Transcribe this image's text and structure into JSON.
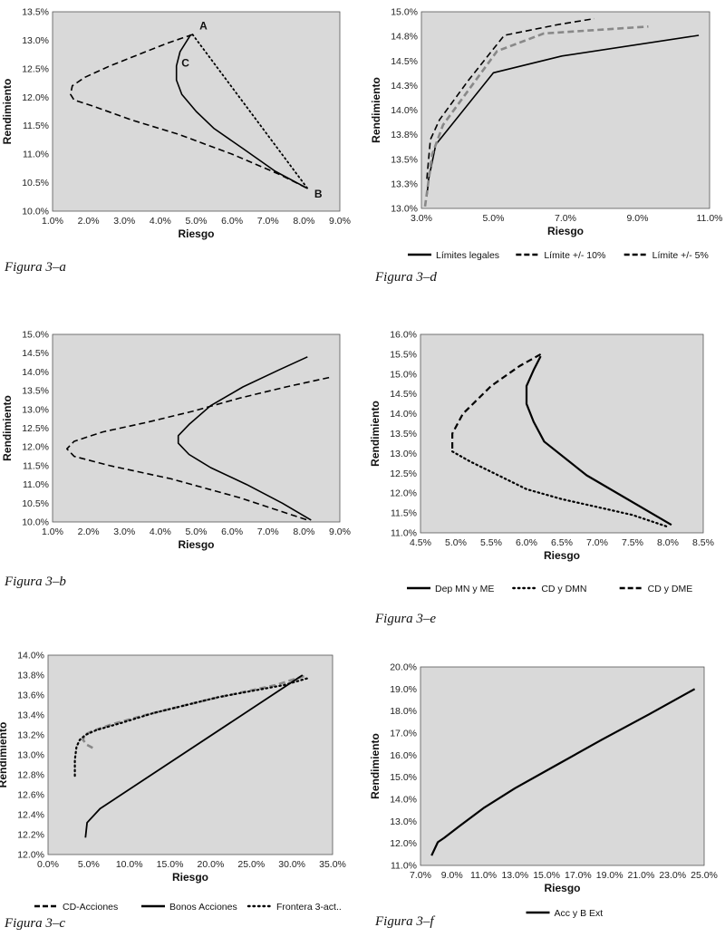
{
  "chart_data": [
    {
      "id": "a",
      "type": "line",
      "caption": "Figura 3–a",
      "xlabel": "Riesgo",
      "ylabel": "Rendimiento",
      "xlim": [
        1,
        9
      ],
      "ylim": [
        10,
        13.5
      ],
      "xticks": [
        1,
        2,
        3,
        4,
        5,
        6,
        7,
        8,
        9
      ],
      "yticks": [
        10,
        10.5,
        11,
        11.5,
        12,
        12.5,
        13,
        13.5
      ],
      "xtick_labels": [
        "1.0%",
        "2.0%",
        "3.0%",
        "4.0%",
        "5.0%",
        "6.0%",
        "7.0%",
        "8.0%",
        "9.0%"
      ],
      "ytick_labels": [
        "10.0%",
        "10.5%",
        "11.0%",
        "11.5%",
        "12.0%",
        "12.5%",
        "13.0%",
        "13.5%"
      ],
      "legend_position": "none",
      "annotations": [
        {
          "text": "A",
          "x": 5.2,
          "y": 13.25
        },
        {
          "text": "C",
          "x": 4.7,
          "y": 12.6
        },
        {
          "text": "B",
          "x": 8.4,
          "y": 10.3
        }
      ],
      "series": [
        {
          "style": "dashed",
          "color": "#000",
          "width": 1.6,
          "x": [
            4.9,
            4.2,
            3.4,
            2.6,
            1.9,
            1.55,
            1.5,
            1.6,
            2.1,
            3.2,
            4.5,
            6.0,
            7.3,
            8.1
          ],
          "y": [
            13.1,
            12.95,
            12.75,
            12.55,
            12.35,
            12.2,
            12.05,
            11.95,
            11.85,
            11.6,
            11.35,
            11.0,
            10.65,
            10.4
          ]
        },
        {
          "style": "solid",
          "color": "#000",
          "width": 1.6,
          "x": [
            4.85,
            4.55,
            4.45,
            4.45,
            4.6,
            5.0,
            5.5,
            6.3,
            7.2,
            8.1
          ],
          "y": [
            13.1,
            12.8,
            12.55,
            12.3,
            12.05,
            11.75,
            11.45,
            11.1,
            10.7,
            10.4
          ]
        },
        {
          "style": "dotted",
          "color": "#000",
          "width": 1.8,
          "x": [
            4.9,
            8.1
          ],
          "y": [
            13.1,
            10.4
          ]
        }
      ]
    },
    {
      "id": "b",
      "type": "line",
      "caption": "Figura 3–b",
      "xlabel": "Riesgo",
      "ylabel": "Rendimiento",
      "xlim": [
        1,
        9
      ],
      "ylim": [
        10,
        15
      ],
      "xticks": [
        1,
        2,
        3,
        4,
        5,
        6,
        7,
        8,
        9
      ],
      "yticks": [
        10,
        10.5,
        11,
        11.5,
        12,
        12.5,
        13,
        13.5,
        14,
        14.5,
        15
      ],
      "xtick_labels": [
        "1.0%",
        "2.0%",
        "3.0%",
        "4.0%",
        "5.0%",
        "6.0%",
        "7.0%",
        "8.0%",
        "9.0%"
      ],
      "ytick_labels": [
        "10.0%",
        "10.5%",
        "11.0%",
        "11.5%",
        "12.0%",
        "12.5%",
        "13.0%",
        "13.5%",
        "14.0%",
        "14.5%",
        "15.0%"
      ],
      "legend_position": "none",
      "annotations": [],
      "series": [
        {
          "style": "solid",
          "color": "#000",
          "width": 1.6,
          "x": [
            8.1,
            7.3,
            6.3,
            5.4,
            4.8,
            4.5,
            4.5,
            4.8,
            5.4,
            6.4,
            7.4,
            8.2
          ],
          "y": [
            14.4,
            14.05,
            13.6,
            13.1,
            12.6,
            12.3,
            12.1,
            11.8,
            11.45,
            11.0,
            10.5,
            10.05
          ]
        },
        {
          "style": "dashed",
          "color": "#000",
          "width": 1.6,
          "x": [
            8.7,
            7.5,
            6.2,
            4.9,
            3.6,
            2.4,
            1.6,
            1.4,
            1.6,
            2.6,
            4.3,
            6.2,
            8.1
          ],
          "y": [
            13.85,
            13.6,
            13.3,
            12.95,
            12.65,
            12.4,
            12.15,
            11.95,
            11.75,
            11.5,
            11.15,
            10.65,
            10.05
          ]
        }
      ]
    },
    {
      "id": "c",
      "type": "line",
      "caption": "Figura 3–c",
      "xlabel": "Riesgo",
      "ylabel": "Rendimiento",
      "xlim": [
        0,
        35
      ],
      "ylim": [
        12.0,
        14.0
      ],
      "xticks": [
        0,
        5,
        10,
        15,
        20,
        25,
        30,
        35
      ],
      "yticks": [
        12.0,
        12.2,
        12.4,
        12.6,
        12.8,
        13.0,
        13.2,
        13.4,
        13.6,
        13.8,
        14.0
      ],
      "xtick_labels": [
        "0.0%",
        "5.0%",
        "10.0%",
        "15.0%",
        "20.0%",
        "25.0%",
        "30.0%",
        "35.0%"
      ],
      "ytick_labels": [
        "12.0%",
        "12.2%",
        "12.4%",
        "12.6%",
        "12.8%",
        "13.0%",
        "13.2%",
        "13.4%",
        "13.6%",
        "13.8%",
        "14.0%"
      ],
      "legend_position": "bottom",
      "annotations": [],
      "series": [
        {
          "name": "CD-Acciones",
          "style": "dashed",
          "color": "#888",
          "width": 2.6,
          "x": [
            5.5,
            4.8,
            4.3,
            4.5,
            5.5,
            8,
            12,
            16,
            20,
            24,
            28,
            31.5
          ],
          "y": [
            13.07,
            13.1,
            13.15,
            13.2,
            13.24,
            13.31,
            13.4,
            13.48,
            13.56,
            13.63,
            13.7,
            13.79
          ]
        },
        {
          "name": "Bonos Acciones",
          "style": "solid",
          "color": "#000",
          "width": 1.8,
          "x": [
            4.6,
            4.8,
            6.4,
            31.3
          ],
          "y": [
            12.17,
            12.32,
            12.46,
            13.8
          ]
        },
        {
          "name": "Frontera 3-act..",
          "style": "dotted",
          "color": "#000",
          "width": 2.2,
          "x": [
            3.3,
            3.3,
            3.5,
            3.9,
            4.6,
            6,
            9,
            13,
            17,
            21,
            25,
            29,
            32
          ],
          "y": [
            12.79,
            12.95,
            13.08,
            13.15,
            13.2,
            13.25,
            13.32,
            13.42,
            13.5,
            13.58,
            13.64,
            13.7,
            13.77
          ]
        }
      ]
    },
    {
      "id": "d",
      "type": "line",
      "caption": "Figura 3–d",
      "xlabel": "Riesgo",
      "ylabel": "Rendimiento",
      "xlim": [
        3,
        11
      ],
      "ylim": [
        13.0,
        15.0
      ],
      "xticks": [
        3,
        5,
        7,
        9,
        11
      ],
      "yticks": [
        13.0,
        13.25,
        13.5,
        13.75,
        14.0,
        14.25,
        14.5,
        14.75,
        15.0
      ],
      "xtick_labels": [
        "3.0%",
        "5.0%",
        "7.0%",
        "9.0%",
        "11.0%"
      ],
      "ytick_labels": [
        "13.0%",
        "13.3%",
        "13.5%",
        "13.8%",
        "14.0%",
        "14.3%",
        "14.5%",
        "14.8%",
        "15.0%"
      ],
      "legend_position": "bottom",
      "annotations": [],
      "series": [
        {
          "name": "Límites legales",
          "style": "solid",
          "color": "#000",
          "width": 1.6,
          "x": [
            3.15,
            3.2,
            3.4,
            5.0,
            6.9,
            10.7
          ],
          "y": [
            13.12,
            13.3,
            13.65,
            14.38,
            14.55,
            14.76
          ]
        },
        {
          "name": "Límite +/- 10%",
          "style": "dashed",
          "color": "#000",
          "width": 1.6,
          "x": [
            3.15,
            3.25,
            3.5,
            4.3,
            5.3,
            6.8,
            7.8
          ],
          "y": [
            13.3,
            13.7,
            13.9,
            14.3,
            14.76,
            14.87,
            14.93
          ]
        },
        {
          "name": "Límite +/- 5%",
          "style": "dashed",
          "color": "#888",
          "width": 2.6,
          "x": [
            3.1,
            3.3,
            3.6,
            4.3,
            5.1,
            6.4,
            9.3
          ],
          "y": [
            13.02,
            13.55,
            13.85,
            14.2,
            14.6,
            14.78,
            14.85
          ]
        }
      ]
    },
    {
      "id": "e",
      "type": "line",
      "caption": "Figura 3–e",
      "xlabel": "Riesgo",
      "ylabel": "Rendimiento",
      "xlim": [
        4.5,
        8.5
      ],
      "ylim": [
        11.0,
        16.0
      ],
      "xticks": [
        4.5,
        5.0,
        5.5,
        6.0,
        6.5,
        7.0,
        7.5,
        8.0,
        8.5
      ],
      "yticks": [
        11.0,
        11.5,
        12.0,
        12.5,
        13.0,
        13.5,
        14.0,
        14.5,
        15.0,
        15.5,
        16.0
      ],
      "xtick_labels": [
        "4.5%",
        "5.0%",
        "5.5%",
        "6.0%",
        "6.5%",
        "7.0%",
        "7.5%",
        "8.0%",
        "8.5%"
      ],
      "ytick_labels": [
        "11.0%",
        "11.5%",
        "12.0%",
        "12.5%",
        "13.0%",
        "13.5%",
        "14.0%",
        "14.5%",
        "15.0%",
        "15.5%",
        "16.0%"
      ],
      "legend_position": "bottom",
      "annotations": [],
      "series": [
        {
          "name": "Dep MN y ME",
          "style": "solid",
          "color": "#000",
          "width": 2.2,
          "x": [
            6.2,
            6.1,
            6.0,
            6.0,
            6.1,
            6.25,
            6.85,
            8.05
          ],
          "y": [
            15.45,
            15.1,
            14.7,
            14.25,
            13.8,
            13.3,
            12.45,
            11.2
          ]
        },
        {
          "name": "CD y DMN",
          "style": "dotted",
          "color": "#000",
          "width": 2.2,
          "x": [
            4.95,
            5.2,
            5.6,
            6.0,
            6.5,
            7.0,
            7.5,
            8.0
          ],
          "y": [
            13.05,
            12.8,
            12.45,
            12.1,
            11.85,
            11.65,
            11.45,
            11.15
          ]
        },
        {
          "name": "CD y DME",
          "style": "dashed",
          "color": "#000",
          "width": 2.2,
          "x": [
            6.2,
            5.9,
            5.5,
            5.1,
            4.95,
            4.95
          ],
          "y": [
            15.5,
            15.2,
            14.7,
            14.0,
            13.5,
            13.05
          ]
        }
      ]
    },
    {
      "id": "f",
      "type": "line",
      "caption": "Figura 3–f",
      "xlabel": "Riesgo",
      "ylabel": "Rendimiento",
      "xlim": [
        7,
        25
      ],
      "ylim": [
        11.0,
        20.0
      ],
      "xticks": [
        7,
        9,
        11,
        13,
        15,
        17,
        19,
        21,
        23,
        25
      ],
      "yticks": [
        11,
        12,
        13,
        14,
        15,
        16,
        17,
        18,
        19,
        20
      ],
      "xtick_labels": [
        "7.0%",
        "9.0%",
        "11.0%",
        "13.0%",
        "15.0%",
        "17.0%",
        "19.0%",
        "21.0%",
        "23.0%",
        "25.0%"
      ],
      "ytick_labels": [
        "11.0%",
        "12.0%",
        "13.0%",
        "14.0%",
        "15.0%",
        "16.0%",
        "17.0%",
        "18.0%",
        "19.0%",
        "20.0%"
      ],
      "legend_position": "bottom",
      "annotations": [],
      "series": [
        {
          "name": "Acc y B Ext",
          "style": "solid",
          "color": "#000",
          "width": 2.2,
          "x": [
            7.7,
            8.1,
            8.5,
            9.5,
            11,
            13,
            15.5,
            18.5,
            21.5,
            24.4
          ],
          "y": [
            11.45,
            12.05,
            12.25,
            12.8,
            13.6,
            14.5,
            15.5,
            16.7,
            17.85,
            19.0
          ]
        }
      ]
    }
  ]
}
